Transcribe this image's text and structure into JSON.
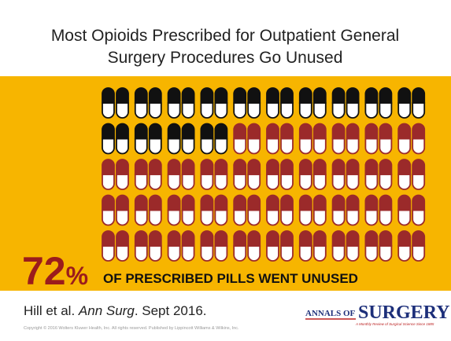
{
  "title_lines": [
    "Most Opioids Prescribed for Outpatient General",
    "Surgery Procedures Go Unused"
  ],
  "stat": {
    "value": 72,
    "unit": "%",
    "caption": "OF PRESCRIBED PILLS WENT UNUSED"
  },
  "citation": {
    "authors": "Hill et al. ",
    "journal": "Ann Surg",
    "date": ". Sept 2016."
  },
  "copyright": "Copyright © 2016 Wolters Kluwer Health, Inc. All rights reserved.  Published by Lippincott Williams & Wilkins, Inc.",
  "logo": {
    "prefix": "ANNALS OF",
    "name": "SURGERY",
    "tagline": "A Monthly Review of Surgical Science Since 1885"
  }
}
